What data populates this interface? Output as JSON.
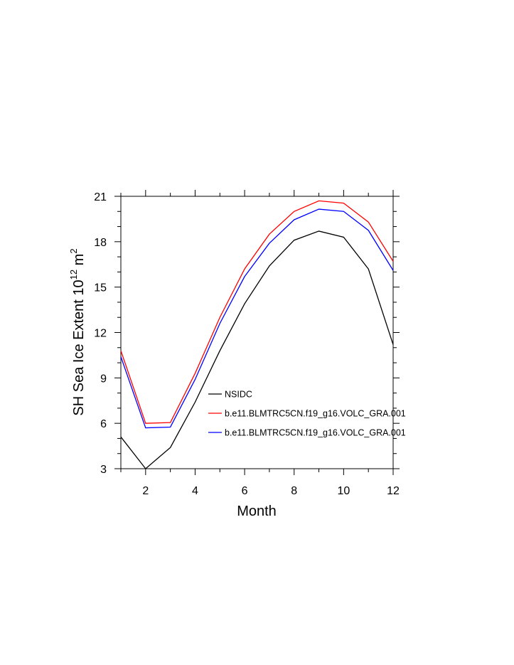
{
  "chart_data": {
    "type": "line",
    "title": "",
    "xlabel": "Month",
    "ylabel_main": "SH Sea Ice Extent 10",
    "ylabel_exp": "12",
    "ylabel_unit": " m",
    "ylabel_unit_exp": "2",
    "xlim": [
      1,
      12
    ],
    "ylim": [
      3,
      21
    ],
    "x_ticks": [
      2,
      4,
      6,
      8,
      10,
      12
    ],
    "x_tick_labels": [
      "2",
      "4",
      "6",
      "8",
      "10",
      "12"
    ],
    "y_ticks": [
      3,
      6,
      9,
      12,
      15,
      18,
      21
    ],
    "y_tick_labels": [
      "3",
      "6",
      "9",
      "12",
      "15",
      "18",
      "21"
    ],
    "grid": false,
    "legend_position": "lower-right",
    "x": [
      1,
      2,
      3,
      4,
      5,
      6,
      7,
      8,
      9,
      10,
      11,
      12
    ],
    "series": [
      {
        "name": "NSIDC",
        "color": "#000000",
        "values": [
          5.1,
          3.0,
          4.4,
          7.4,
          10.8,
          13.9,
          16.4,
          18.1,
          18.7,
          18.3,
          16.2,
          11.2
        ]
      },
      {
        "name": "b.e11.BLMTRC5CN.f19_g16.VOLC_GRA.001",
        "color": "#ff0000",
        "values": [
          10.8,
          6.0,
          6.05,
          9.3,
          13.0,
          16.2,
          18.5,
          20.0,
          20.7,
          20.55,
          19.3,
          16.7
        ]
      },
      {
        "name": "b.e11.BLMTRC5CN.f19_g16.VOLC_GRA.001",
        "color": "#0000ff",
        "values": [
          10.4,
          5.7,
          5.75,
          8.9,
          12.6,
          15.7,
          17.9,
          19.45,
          20.15,
          20.0,
          18.75,
          16.1
        ]
      }
    ]
  }
}
